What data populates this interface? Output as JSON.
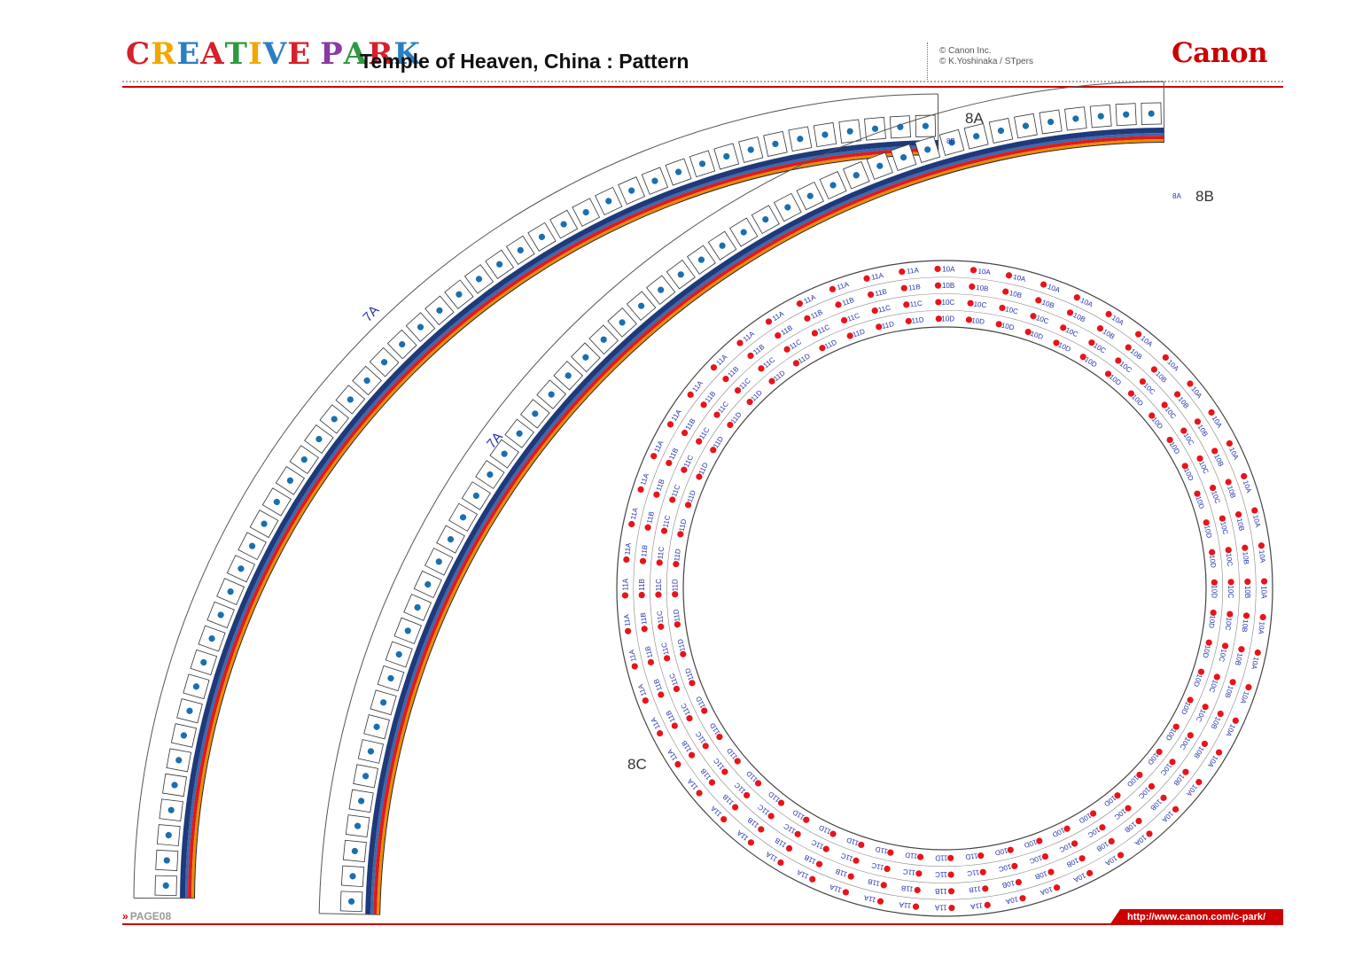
{
  "header": {
    "logo_text": "CREATIVE PARK",
    "logo_colors": [
      "#d6202a",
      "#f0a800",
      "#2a7fc4",
      "#d6202a",
      "#2e9a3f",
      "#f0a800",
      "#2a7fc4",
      "#d6202a",
      "#8a3aa0",
      "#2e9a3f",
      "#d6202a",
      "#2a7fc4",
      "#f0a800"
    ],
    "title": "Temple of Heaven, China : Pattern",
    "copyright_1": "© Canon Inc.",
    "copyright_2": "© K.Yoshinaka  / STpers",
    "brand": "Canon"
  },
  "parts": {
    "strip_1": {
      "label": "8A",
      "side_text": "7A",
      "tab_text": "8B"
    },
    "strip_2": {
      "label": "8B",
      "side_text": "7A",
      "tab_text": "8A"
    },
    "ring": {
      "label": "8C",
      "rows_left": [
        "11A",
        "11B",
        "11C",
        "11D"
      ],
      "rows_right": [
        "10A",
        "10B",
        "10C",
        "10D"
      ]
    }
  },
  "footer": {
    "page": "PAGE08",
    "page_prefix": "»",
    "url": "http://www.canon.com/c-park/"
  },
  "colors": {
    "accent": "#cc0000",
    "dot_blue": "#1a6fb0",
    "dot_red": "#e8141a",
    "tag_text": "#2233aa"
  }
}
